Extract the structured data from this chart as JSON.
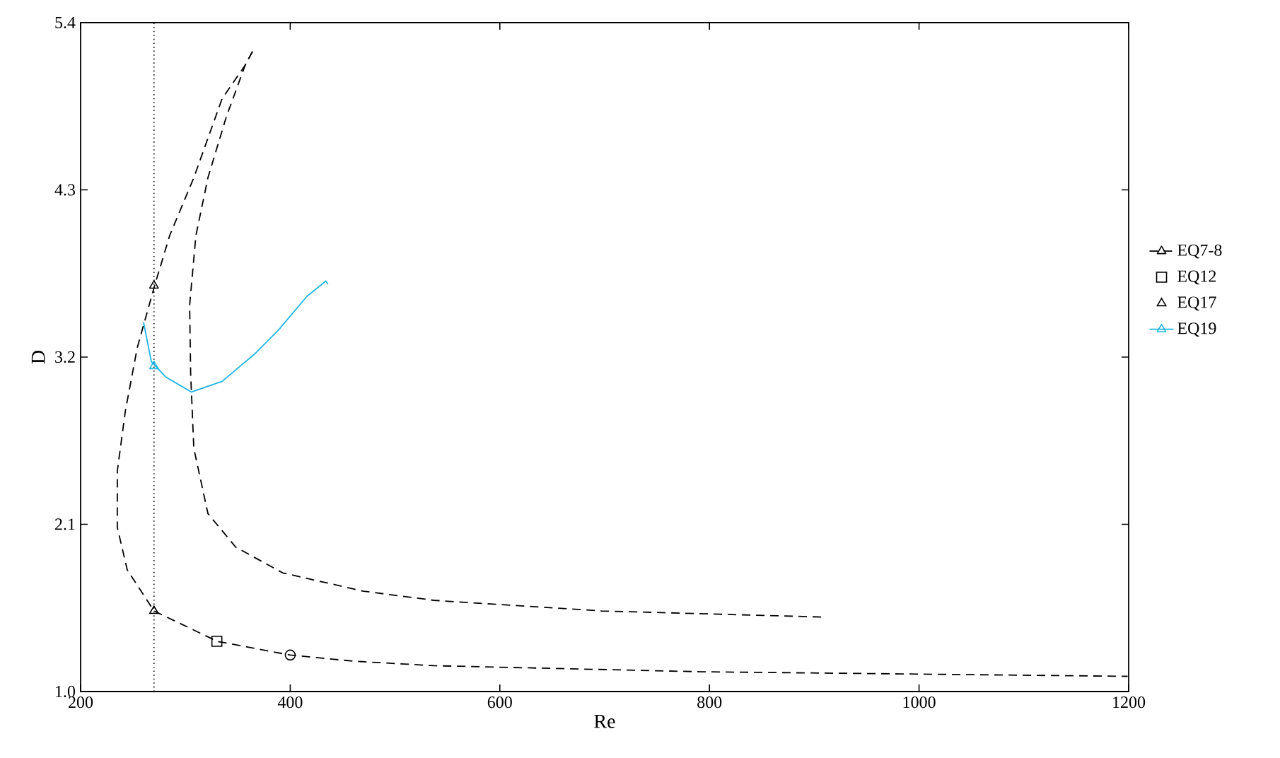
{
  "chart_data": {
    "type": "line",
    "xlabel": "Re",
    "ylabel": "D",
    "xlim": [
      200,
      1200
    ],
    "ylim": [
      1.0,
      5.4
    ],
    "xticks": [
      200,
      400,
      600,
      800,
      1000,
      1200
    ],
    "yticks": [
      {
        "value": 1.0,
        "label": "1.0"
      },
      2.1,
      3.2,
      4.3,
      5.4
    ],
    "legend": "right",
    "ref_lines": [
      {
        "axis": "x",
        "value": 270,
        "color": "#000000",
        "line_style": "dotted"
      }
    ],
    "series": [
      {
        "color": "#000000",
        "line_style": "dashed",
        "marker": "none",
        "x": [
          364,
          357,
          335,
          308,
          285,
          270.6,
          254,
          242.8,
          235,
          235,
          244.5,
          270,
          330.5,
          400,
          460,
          537,
          792,
          1199
        ],
        "values": [
          5.21,
          5.12,
          4.9,
          4.38,
          4.0,
          3.67,
          3.26,
          2.85,
          2.45,
          2.08,
          1.8,
          1.53,
          1.33,
          1.24,
          1.2,
          1.17,
          1.13,
          1.1
        ]
      },
      {
        "color": "#000000",
        "line_style": "dashed",
        "marker": "none",
        "x": [
          364,
          357,
          339,
          321.5,
          310,
          304,
          305,
          308,
          321.5,
          348,
          393,
          470,
          537,
          697,
          908
        ],
        "values": [
          5.21,
          5.12,
          4.78,
          4.38,
          4.0,
          3.54,
          3.09,
          2.6,
          2.17,
          1.95,
          1.78,
          1.66,
          1.6,
          1.53,
          1.49
        ]
      },
      {
        "color": "#1eb4e6",
        "line_style": "solid",
        "marker": "none",
        "x": [
          260,
          267.5,
          281,
          305.7,
          335,
          366,
          389,
          416,
          434,
          436
        ],
        "values": [
          3.43,
          3.17,
          3.07,
          2.97,
          3.04,
          3.22,
          3.38,
          3.6,
          3.7,
          3.68
        ]
      },
      {
        "name": "EQ7-8",
        "color": "#000000",
        "line_style": "dashed",
        "marker": "triangle",
        "x": [
          270
        ],
        "values": [
          3.67
        ]
      },
      {
        "name": "EQ12",
        "type": "scatter",
        "color": "#000000",
        "marker": "square",
        "x": [
          330
        ],
        "values": [
          1.33
        ]
      },
      {
        "name": "EQ17",
        "type": "scatter",
        "color": "#000000",
        "marker": "triangle",
        "x": [
          270
        ],
        "values": [
          1.53
        ]
      },
      {
        "name": "EQ19",
        "color": "#1eb4e6",
        "line_style": "solid",
        "marker": "triangle",
        "x": [
          270
        ],
        "values": [
          3.14
        ]
      },
      {
        "type": "scatter",
        "color": "#000000",
        "marker": "circle",
        "x": [
          400
        ],
        "values": [
          1.24
        ]
      }
    ]
  }
}
